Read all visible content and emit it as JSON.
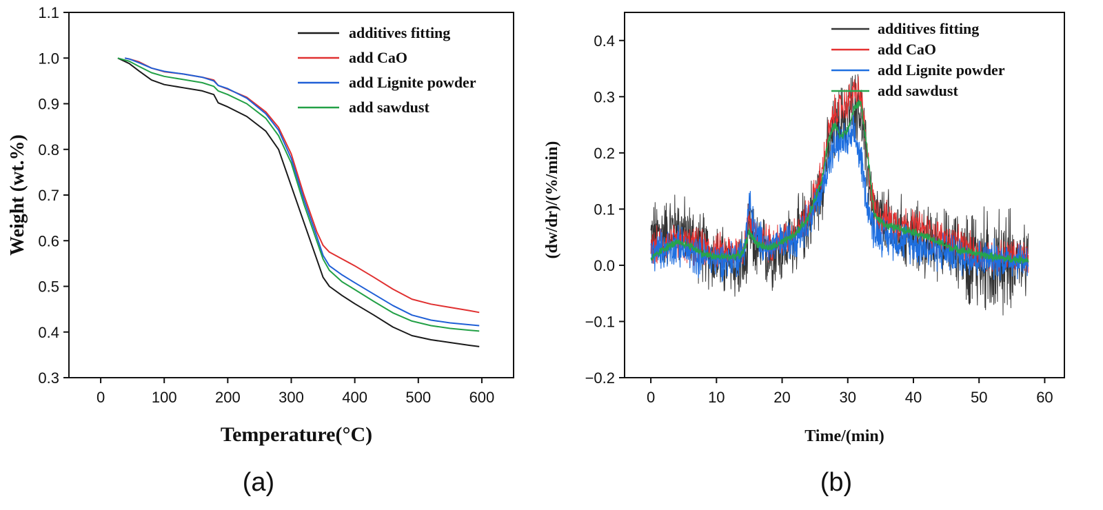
{
  "chart_data": [
    {
      "type": "line",
      "panel_label": "(a)",
      "xlabel": "Temperature(°C)",
      "ylabel": "Weight (wt.%)",
      "xlim": [
        -50,
        650
      ],
      "ylim": [
        0.3,
        1.1
      ],
      "xticks": [
        0,
        100,
        200,
        300,
        400,
        500,
        600
      ],
      "yticks": [
        0.3,
        0.4,
        0.5,
        0.6,
        0.7,
        0.8,
        0.9,
        1.0,
        1.1
      ],
      "xtick_labels": [
        "0",
        "100",
        "200",
        "300",
        "400",
        "500",
        "600"
      ],
      "ytick_labels": [
        "0.3",
        "0.4",
        "0.5",
        "0.6",
        "0.7",
        "0.8",
        "0.9",
        "1.0",
        "1.1"
      ],
      "legend_position": "top-right",
      "series": [
        {
          "name": "additives fitting",
          "color": "#1a1a1a",
          "x": [
            27,
            45,
            60,
            80,
            100,
            130,
            160,
            178,
            185,
            200,
            230,
            260,
            280,
            300,
            320,
            340,
            350,
            360,
            380,
            400,
            430,
            460,
            490,
            520,
            550,
            580,
            596
          ],
          "y": [
            1.0,
            0.988,
            0.972,
            0.952,
            0.942,
            0.935,
            0.928,
            0.92,
            0.902,
            0.893,
            0.872,
            0.84,
            0.8,
            0.72,
            0.64,
            0.56,
            0.52,
            0.5,
            0.48,
            0.462,
            0.437,
            0.411,
            0.392,
            0.383,
            0.377,
            0.371,
            0.368
          ]
        },
        {
          "name": "add CaO",
          "color": "#e03030",
          "x": [
            38,
            45,
            60,
            80,
            100,
            130,
            160,
            178,
            185,
            200,
            230,
            260,
            280,
            300,
            320,
            340,
            350,
            360,
            380,
            400,
            430,
            460,
            490,
            520,
            550,
            580,
            596
          ],
          "y": [
            1.0,
            0.998,
            0.992,
            0.978,
            0.97,
            0.965,
            0.958,
            0.952,
            0.94,
            0.932,
            0.914,
            0.882,
            0.848,
            0.79,
            0.7,
            0.62,
            0.59,
            0.575,
            0.56,
            0.545,
            0.52,
            0.494,
            0.472,
            0.461,
            0.454,
            0.447,
            0.443
          ]
        },
        {
          "name": "add Lignite powder",
          "color": "#1f5fd6",
          "x": [
            38,
            45,
            60,
            80,
            100,
            130,
            160,
            178,
            185,
            200,
            230,
            260,
            280,
            300,
            320,
            340,
            350,
            360,
            380,
            400,
            430,
            460,
            490,
            520,
            550,
            580,
            596
          ],
          "y": [
            1.0,
            0.998,
            0.99,
            0.978,
            0.971,
            0.965,
            0.958,
            0.95,
            0.94,
            0.933,
            0.912,
            0.878,
            0.842,
            0.78,
            0.69,
            0.61,
            0.568,
            0.545,
            0.525,
            0.508,
            0.483,
            0.458,
            0.437,
            0.426,
            0.42,
            0.416,
            0.414
          ]
        },
        {
          "name": "add sawdust",
          "color": "#22a046",
          "x": [
            27,
            45,
            60,
            80,
            100,
            130,
            160,
            178,
            185,
            200,
            230,
            260,
            280,
            300,
            320,
            340,
            350,
            360,
            380,
            400,
            430,
            460,
            490,
            520,
            550,
            580,
            596
          ],
          "y": [
            1.0,
            0.993,
            0.982,
            0.968,
            0.96,
            0.953,
            0.946,
            0.938,
            0.928,
            0.92,
            0.9,
            0.868,
            0.83,
            0.77,
            0.68,
            0.6,
            0.56,
            0.535,
            0.51,
            0.493,
            0.467,
            0.442,
            0.424,
            0.414,
            0.408,
            0.404,
            0.402
          ]
        }
      ]
    },
    {
      "type": "line",
      "panel_label": "(b)",
      "xlabel": "Time/(min)",
      "ylabel": "(dw/dr)/(%/min)",
      "xlim": [
        -4,
        63
      ],
      "ylim": [
        -0.2,
        0.45
      ],
      "xticks": [
        0,
        10,
        20,
        30,
        40,
        50,
        60
      ],
      "yticks": [
        -0.2,
        -0.1,
        0.0,
        0.1,
        0.2,
        0.3,
        0.4
      ],
      "xtick_labels": [
        "0",
        "10",
        "20",
        "30",
        "40",
        "50",
        "60"
      ],
      "ytick_labels": [
        "−0.2",
        "−0.1",
        "0.0",
        "0.1",
        "0.2",
        "0.3",
        "0.4"
      ],
      "legend_position": "top-right",
      "series": [
        {
          "name": "additives fitting",
          "color": "#333333",
          "x": [
            0,
            2,
            4,
            6,
            8,
            10,
            12,
            14,
            14.5,
            15,
            16,
            18,
            20,
            22,
            24,
            26,
            27,
            28,
            29,
            30,
            31,
            32,
            33,
            34,
            36,
            38,
            40,
            42,
            44,
            46,
            48,
            50,
            52,
            54,
            56,
            57.5
          ],
          "y": [
            0.05,
            0.06,
            0.07,
            0.05,
            0.03,
            0.01,
            0.0,
            0.0,
            0.0,
            0.06,
            0.03,
            0.02,
            0.03,
            0.05,
            0.08,
            0.14,
            0.2,
            0.24,
            0.26,
            0.27,
            0.29,
            0.27,
            0.17,
            0.09,
            0.07,
            0.06,
            0.05,
            0.04,
            0.04,
            0.03,
            0.02,
            0.01,
            0.0,
            0.01,
            0.01,
            0.0
          ]
        },
        {
          "name": "add CaO",
          "color": "#e53030",
          "x": [
            0,
            2,
            4,
            6,
            8,
            10,
            12,
            14,
            14.5,
            15,
            16,
            18,
            20,
            22,
            24,
            26,
            27,
            28,
            29,
            30,
            31,
            32,
            33,
            34,
            36,
            38,
            40,
            42,
            44,
            46,
            48,
            50,
            52,
            54,
            56,
            57.5
          ],
          "y": [
            0.03,
            0.04,
            0.04,
            0.035,
            0.03,
            0.025,
            0.025,
            0.03,
            0.05,
            0.09,
            0.05,
            0.04,
            0.045,
            0.06,
            0.09,
            0.16,
            0.23,
            0.27,
            0.28,
            0.29,
            0.31,
            0.3,
            0.19,
            0.1,
            0.08,
            0.075,
            0.07,
            0.06,
            0.05,
            0.04,
            0.03,
            0.02,
            0.015,
            0.015,
            0.015,
            0.01
          ]
        },
        {
          "name": "add Lignite powder",
          "color": "#1e6fe0",
          "x": [
            0,
            2,
            4,
            6,
            8,
            10,
            12,
            14,
            14.5,
            15,
            16,
            18,
            20,
            22,
            24,
            26,
            27,
            28,
            29,
            30,
            31,
            32,
            33,
            34,
            36,
            38,
            40,
            42,
            44,
            46,
            48,
            50,
            52,
            54,
            56,
            57.5
          ],
          "y": [
            0.02,
            0.03,
            0.035,
            0.02,
            0.015,
            0.01,
            0.01,
            0.02,
            0.06,
            0.11,
            0.05,
            0.03,
            0.04,
            0.05,
            0.08,
            0.13,
            0.18,
            0.21,
            0.22,
            0.22,
            0.23,
            0.19,
            0.11,
            0.06,
            0.05,
            0.045,
            0.04,
            0.03,
            0.025,
            0.02,
            0.015,
            0.01,
            0.01,
            0.01,
            0.01,
            0.01
          ]
        },
        {
          "name": "add  sawdust",
          "color": "#27a34d",
          "x": [
            0,
            2,
            4,
            6,
            8,
            10,
            12,
            14,
            14.5,
            15,
            16,
            18,
            20,
            22,
            24,
            26,
            27,
            28,
            29,
            30,
            31,
            32,
            33,
            34,
            36,
            38,
            40,
            42,
            44,
            46,
            48,
            50,
            52,
            54,
            56,
            57.5
          ],
          "y": [
            0.01,
            0.03,
            0.04,
            0.035,
            0.02,
            0.015,
            0.015,
            0.02,
            0.04,
            0.06,
            0.04,
            0.03,
            0.04,
            0.055,
            0.085,
            0.15,
            0.22,
            0.25,
            0.23,
            0.24,
            0.28,
            0.29,
            0.2,
            0.09,
            0.07,
            0.065,
            0.06,
            0.05,
            0.04,
            0.03,
            0.025,
            0.02,
            0.015,
            0.012,
            0.01,
            0.01
          ]
        }
      ]
    }
  ]
}
